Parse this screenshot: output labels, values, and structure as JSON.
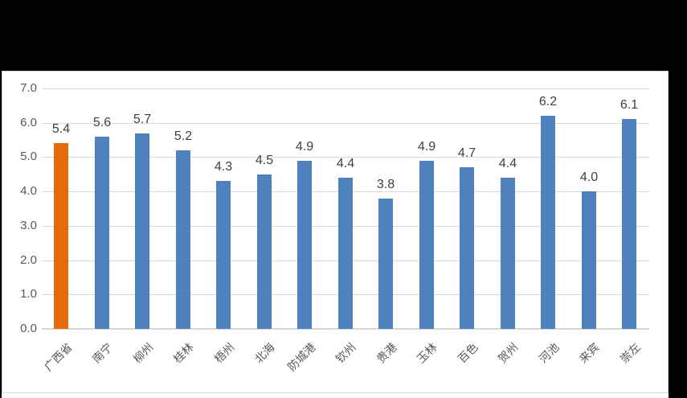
{
  "canvas": {
    "background_color": "#000000",
    "panel_background_color": "#ffffff",
    "panel_border_color": "#d2d2d2"
  },
  "chart_data": {
    "type": "bar",
    "title": "",
    "xlabel": "",
    "ylabel": "",
    "categories": [
      "广西省",
      "南宁",
      "柳州",
      "桂林",
      "梧州",
      "北海",
      "防城港",
      "钦州",
      "贵港",
      "玉林",
      "百色",
      "贺州",
      "河池",
      "来宾",
      "崇左"
    ],
    "values": [
      5.4,
      5.6,
      5.7,
      5.2,
      4.3,
      4.5,
      4.9,
      4.4,
      3.8,
      4.9,
      4.7,
      4.4,
      6.2,
      4.0,
      6.1
    ],
    "data_labels": [
      "5.4",
      "5.6",
      "5.7",
      "5.2",
      "4.3",
      "4.5",
      "4.9",
      "4.4",
      "3.8",
      "4.9",
      "4.7",
      "4.4",
      "6.2",
      "4.0",
      "6.1"
    ],
    "ylim": [
      0,
      7
    ],
    "ytick_step": 1,
    "ytick_labels": [
      "0.0",
      "1.0",
      "2.0",
      "3.0",
      "4.0",
      "5.0",
      "6.0",
      "7.0"
    ],
    "grid": true,
    "legend_position": "none",
    "highlight_index": 0,
    "colors": {
      "bar_default": "#4f81bd",
      "bar_highlight": "#e26c09",
      "gridline": "#d9d9d9",
      "axis_line": "#d6d6d6",
      "tick_label": "#595959",
      "data_label": "#404040"
    }
  }
}
